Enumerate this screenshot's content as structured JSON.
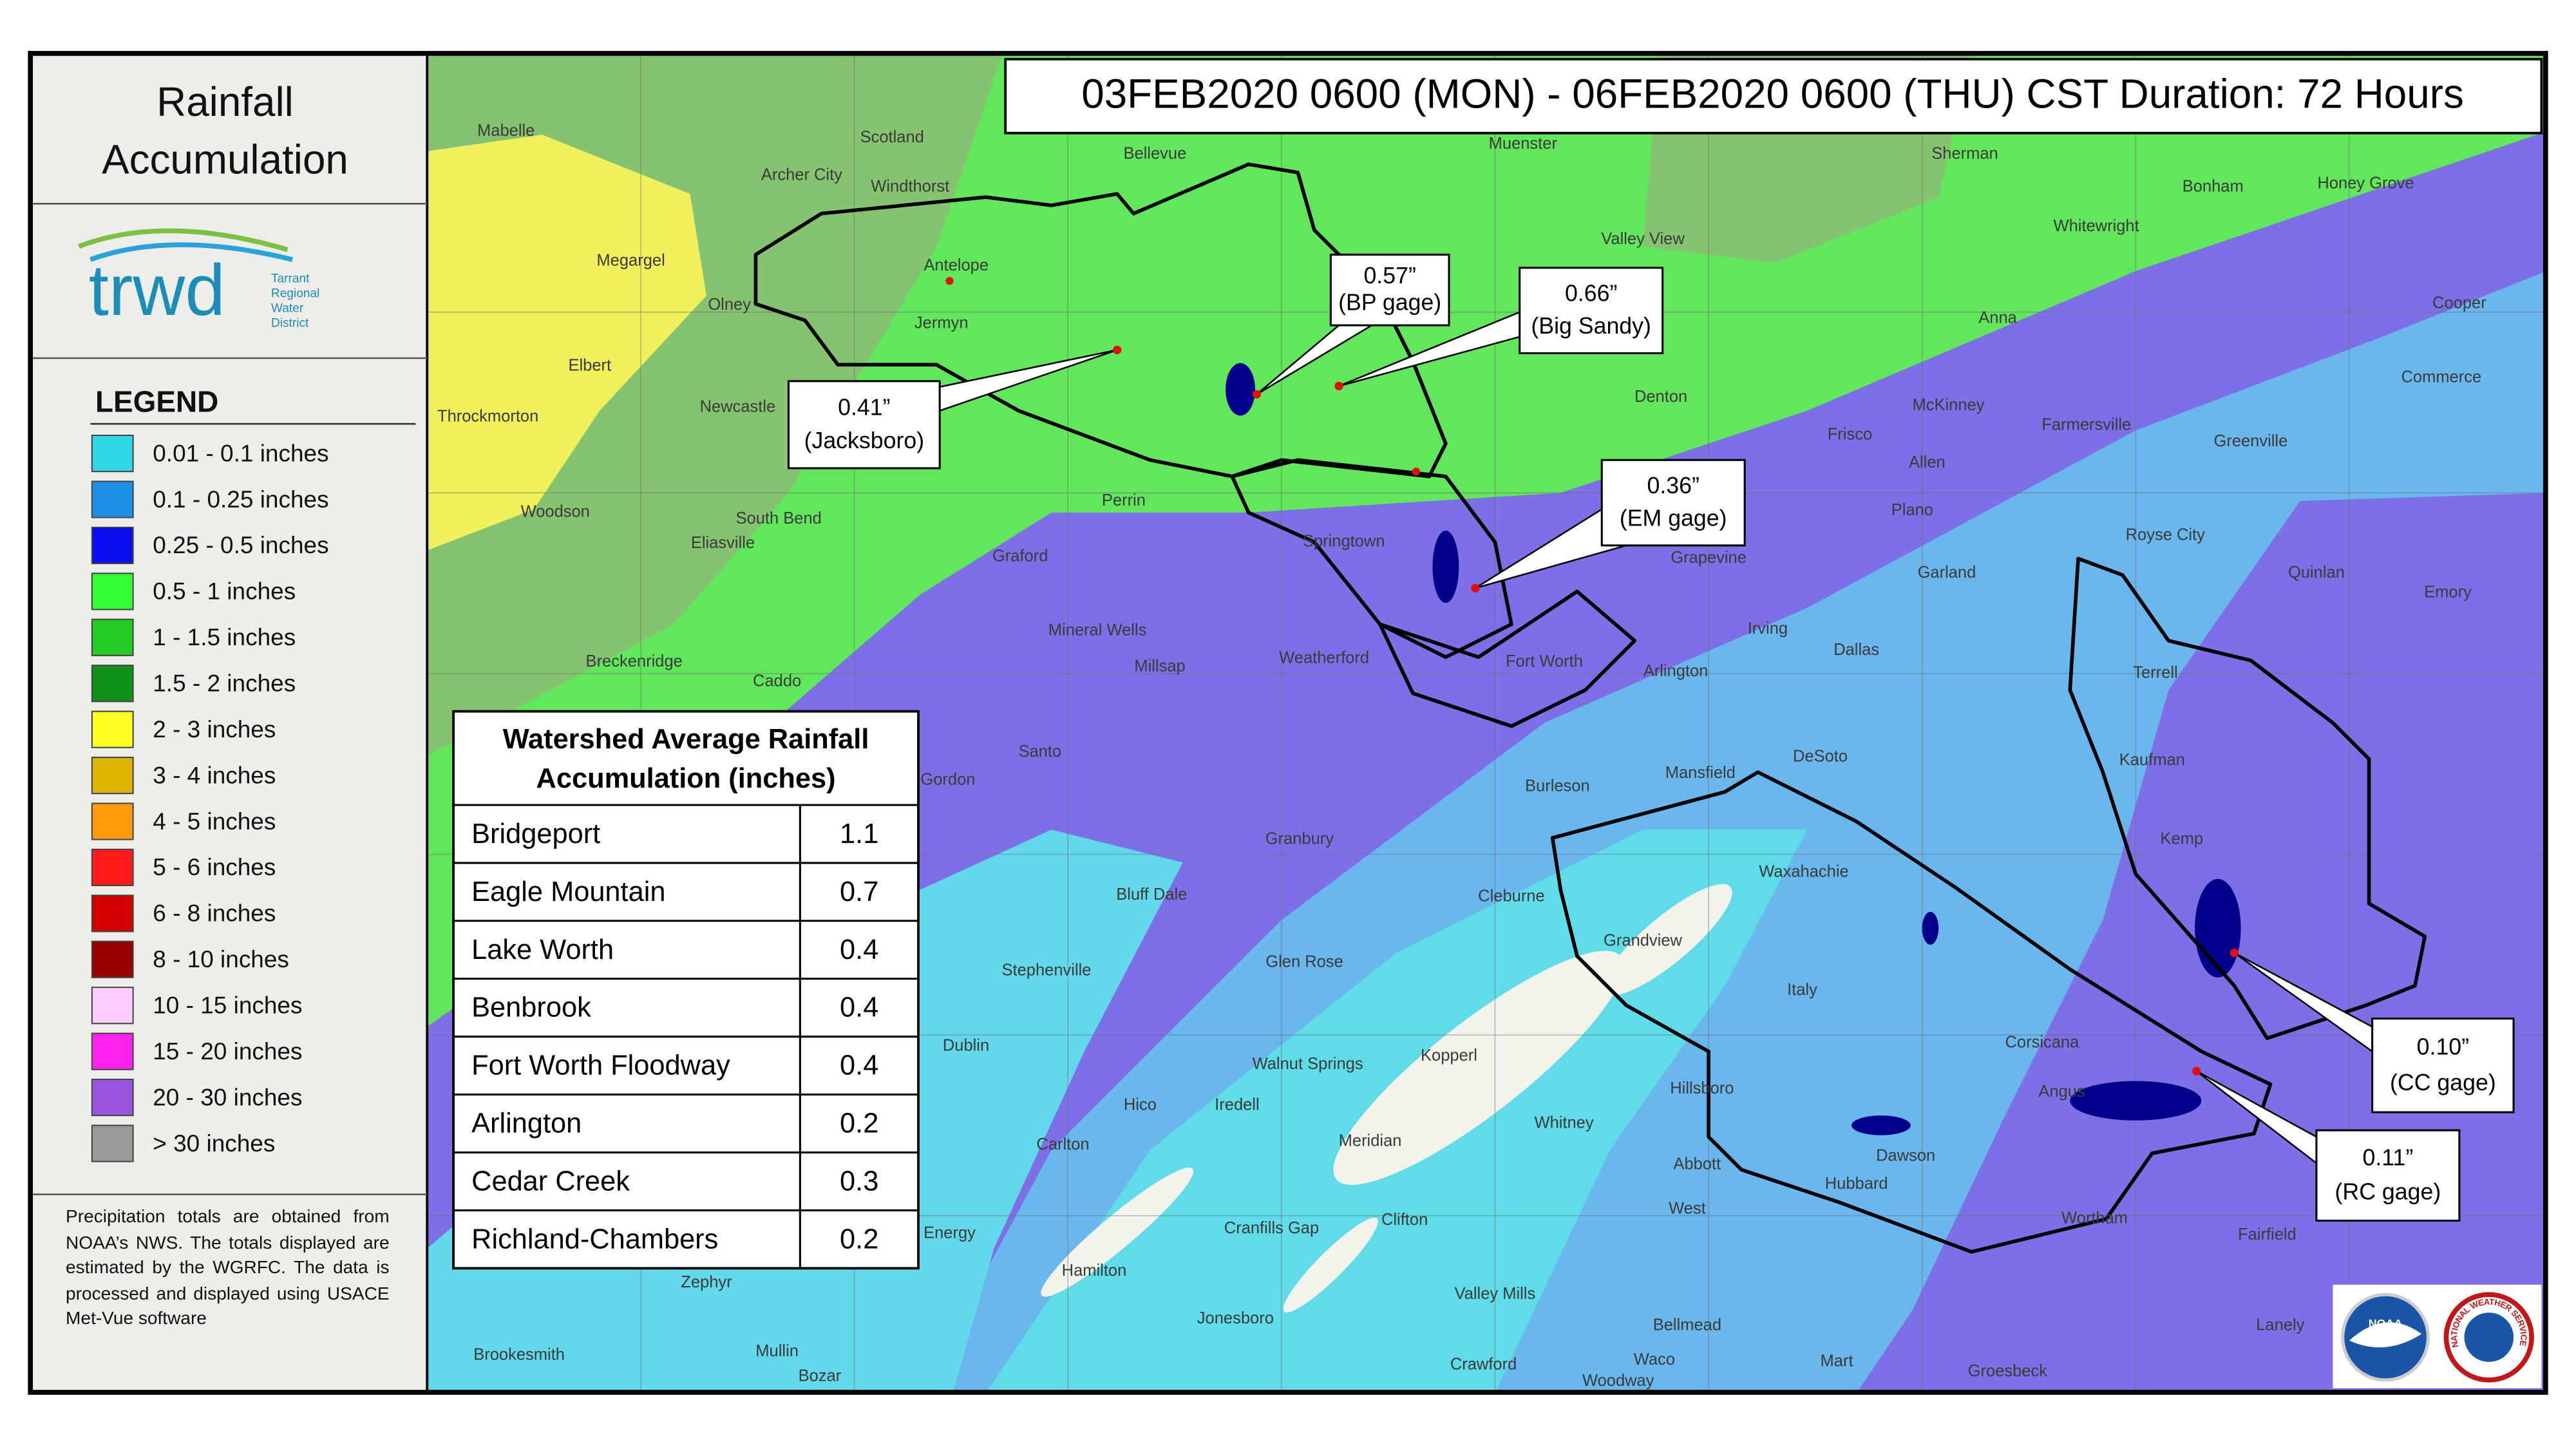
{
  "header": {
    "title": "03FEB2020 0600 (MON) - 06FEB2020 0600 (THU) CST Duration: 72 Hours"
  },
  "sidebar": {
    "title_lines": [
      "Rainfall",
      "Accumulation"
    ],
    "logo": {
      "name": "trwd",
      "tagline_lines": [
        "Tarrant",
        "Regional",
        "Water",
        "District"
      ]
    },
    "legend": {
      "title": "LEGEND",
      "items": [
        {
          "label": "0.01 - 0.1 inches",
          "color": "#2fd8e6"
        },
        {
          "label": "0.1 - 0.25 inches",
          "color": "#1e8fe6"
        },
        {
          "label": "0.25 - 0.5 inches",
          "color": "#0a0ff0"
        },
        {
          "label": "0.5 - 1 inches",
          "color": "#33ff33"
        },
        {
          "label": "1 - 1.5 inches",
          "color": "#22cc22"
        },
        {
          "label": "1.5 - 2 inches",
          "color": "#11911a"
        },
        {
          "label": "2 - 3 inches",
          "color": "#ffff22"
        },
        {
          "label": "3 - 4 inches",
          "color": "#ddb400"
        },
        {
          "label": "4 - 5 inches",
          "color": "#ff9a0a"
        },
        {
          "label": "5 - 6 inches",
          "color": "#ff1a1a"
        },
        {
          "label": "6 - 8 inches",
          "color": "#d40000"
        },
        {
          "label": "8 - 10 inches",
          "color": "#990000"
        },
        {
          "label": "10 - 15 inches",
          "color": "#ffccff"
        },
        {
          "label": "15 - 20 inches",
          "color": "#ff22ee"
        },
        {
          "label": "20 - 30 inches",
          "color": "#9955dd"
        },
        {
          "label": "> 30 inches",
          "color": "#999999"
        }
      ]
    },
    "note": "Precipitation totals are obtained from NOAA’s NWS.  The totals displayed are estimated by the WGRFC.  The data is processed and displayed using USACE Met-Vue software"
  },
  "table": {
    "title_lines": [
      "Watershed Average Rainfall",
      "Accumulation (inches)"
    ],
    "rows": [
      [
        "Bridgeport",
        1.1
      ],
      [
        "Eagle Mountain",
        0.7
      ],
      [
        "Lake Worth",
        0.4
      ],
      [
        "Benbrook",
        0.4
      ],
      [
        "Fort Worth Floodway",
        0.4
      ],
      [
        "Arlington",
        0.2
      ],
      [
        "Cedar Creek",
        0.3
      ],
      [
        "Richland-Chambers",
        0.2
      ]
    ]
  },
  "callouts": [
    {
      "value": "0.41”",
      "label": "(Jacksboro)"
    },
    {
      "value": "0.57”",
      "label": "(BP gage)"
    },
    {
      "value": "0.66”",
      "label": "(Big Sandy)"
    },
    {
      "value": "0.36”",
      "label": "(EM gage)"
    },
    {
      "value": "0.10”",
      "label": "(CC gage)"
    },
    {
      "value": "0.11”",
      "label": "(RC gage)"
    }
  ],
  "places": [
    "Mabelle",
    "Scotland",
    "Bellevue",
    "Muenster",
    "Sherman",
    "Bonham",
    "Honey Grove",
    "Archer City",
    "Windthorst",
    "Valley View",
    "Whitewright",
    "Megargel",
    "Olney",
    "Antelope",
    "Anna",
    "Cooper",
    "Jermyn",
    "Elbert",
    "Denton",
    "McKinney",
    "Commerce",
    "Throckmorton",
    "Newcastle",
    "Frisco",
    "Farmersville",
    "Greenville",
    "Allen",
    "Woodson",
    "South Bend",
    "Perrin",
    "Plano",
    "Eliasville",
    "Graford",
    "Springtown",
    "Grapevine",
    "Royse City",
    "Quinlan",
    "Emory",
    "Garland",
    "Mineral Wells",
    "Irving",
    "Dallas",
    "Breckenridge",
    "Caddo",
    "Millsap",
    "Weatherford",
    "Fort Worth",
    "Arlington",
    "Terrell",
    "Santo",
    "DeSoto",
    "Mansfield",
    "Kaufman",
    "Gordon",
    "Burleson",
    "Granbury",
    "Kemp",
    "Bluff Dale",
    "Cleburne",
    "Waxahachie",
    "Grandview",
    "Stephenville",
    "Glen Rose",
    "Italy",
    "Dublin",
    "Walnut Springs",
    "Kopperl",
    "Corsicana",
    "Angus",
    "Hillsboro",
    "Hico",
    "Iredell",
    "Meridian",
    "Whitney",
    "Dawson",
    "Carlton",
    "Abbott",
    "Hubbard",
    "Energy",
    "Cranfills Gap",
    "Clifton",
    "West",
    "Wortham",
    "Fairfield",
    "Hamilton",
    "Zephyr",
    "Jonesboro",
    "Valley Mills",
    "Lanely",
    "Brookesmith",
    "Mullin",
    "Bellmead",
    "Crawford",
    "Waco",
    "Mart",
    "Groesbeck",
    "Bozar",
    "Woodway"
  ],
  "logos": [
    "NOAA",
    "NATIONAL WEATHER SERVICE"
  ]
}
